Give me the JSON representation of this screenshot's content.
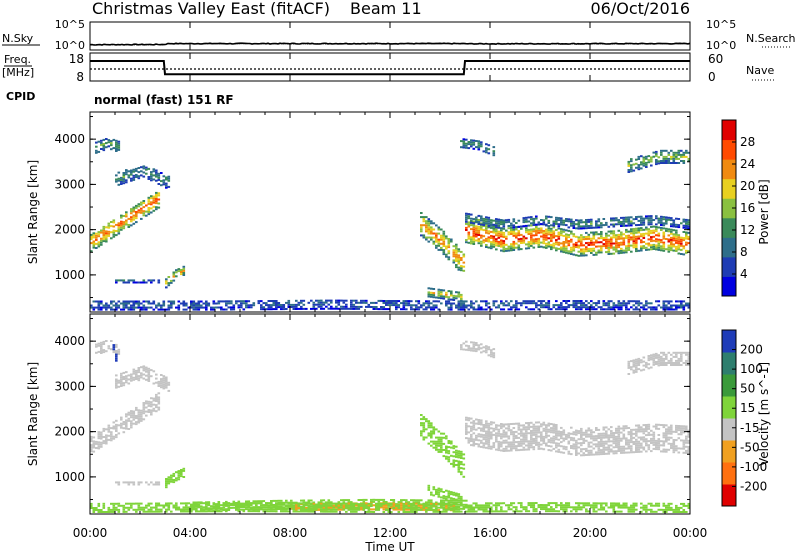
{
  "header": {
    "title": "Christmas Valley East (fitACF)",
    "beam": "Beam 11",
    "date": "06/Oct/2016"
  },
  "noise_panel": {
    "left_label": "N.Sky",
    "right_label": "N.Search",
    "left_ticks": [
      "10^5",
      "10^0"
    ],
    "right_ticks": [
      "10^5",
      "10^0"
    ]
  },
  "freq_panel": {
    "left_label_line1": "Freq.",
    "left_label_line2": "[MHz]",
    "left_ticks": [
      "18",
      "8"
    ],
    "right_ticks": [
      "60",
      "0"
    ],
    "right_label": "Nave"
  },
  "cpid": {
    "label": "CPID",
    "text": "normal (fast) 151 RF"
  },
  "x_axis": {
    "label": "Time UT",
    "ticks": [
      "00:00",
      "04:00",
      "08:00",
      "12:00",
      "16:00",
      "20:00",
      "00:00"
    ]
  },
  "power_panel": {
    "ylabel": "Slant Range [km]",
    "yticks": [
      "4000",
      "3000",
      "2000",
      "1000"
    ],
    "colorbar_label": "Power [dB]",
    "colorbar_ticks": [
      "28",
      "24",
      "20",
      "16",
      "12",
      "8",
      "4"
    ]
  },
  "velocity_panel": {
    "ylabel": "Slant Range [km]",
    "yticks": [
      "4000",
      "3000",
      "2000",
      "1000"
    ],
    "colorbar_label": "Velocity [m s^-1]",
    "colorbar_ticks": [
      "200",
      "100",
      "50",
      "15",
      "-15",
      "-50",
      "-100",
      "-200"
    ]
  },
  "chart_data": [
    {
      "type": "line",
      "name": "noise",
      "x_hours": [
        0,
        3,
        3.1,
        15,
        15.1,
        24
      ],
      "sky_log10": [
        0.3,
        0.35,
        0.55,
        0.55,
        0.5,
        0.55
      ],
      "search_log10": [
        0.3,
        0.3,
        0.5,
        0.5,
        0.45,
        0.5
      ],
      "ylim_log10": [
        0,
        5
      ]
    },
    {
      "type": "line",
      "name": "frequency",
      "x_hours": [
        0,
        2.95,
        3.0,
        14.95,
        15.0,
        24
      ],
      "freq_mhz": [
        15.5,
        15.5,
        10.0,
        10.0,
        15.5,
        15.5
      ],
      "nave": [
        25,
        25,
        25,
        25,
        25,
        25
      ],
      "ylim_freq": [
        8,
        18
      ],
      "ylim_nave": [
        0,
        60
      ]
    },
    {
      "type": "heatmap",
      "name": "power",
      "xlim_hours": [
        0,
        24
      ],
      "ylim_km": [
        180,
        4600
      ],
      "bands": [
        {
          "t0": 0.0,
          "t1": 2.8,
          "r_center": [
            1700,
            2200,
            2700
          ],
          "width_km": 400,
          "power_db": 26
        },
        {
          "t0": 0.2,
          "t1": 1.2,
          "r_center": [
            3800,
            3900,
            3800
          ],
          "width_km": 250,
          "power_db": 14
        },
        {
          "t0": 1.0,
          "t1": 3.2,
          "r_center": [
            3100,
            3300,
            3000
          ],
          "width_km": 300,
          "power_db": 12
        },
        {
          "t0": 1.0,
          "t1": 2.8,
          "r_center": [
            850,
            850,
            850
          ],
          "width_km": 80,
          "power_db": 10
        },
        {
          "t0": 3.0,
          "t1": 3.8,
          "r_center": [
            800,
            1000,
            1100
          ],
          "width_km": 200,
          "power_db": 22
        },
        {
          "t0": 13.2,
          "t1": 14.95,
          "r_center": [
            2100,
            1700,
            1200
          ],
          "width_km": 500,
          "power_db": 24
        },
        {
          "t0": 13.5,
          "t1": 14.8,
          "r_center": [
            600,
            550,
            500
          ],
          "width_km": 200,
          "power_db": 20
        },
        {
          "t0": 15.0,
          "t1": 24.0,
          "r_center": [
            1950,
            1750,
            1850,
            1650,
            1700,
            1800,
            1650
          ],
          "width_km": 500,
          "power_db": 28
        },
        {
          "t0": 15.0,
          "t1": 24.0,
          "r_center": [
            2250,
            2100,
            2200,
            2100,
            2150,
            2200,
            2100
          ],
          "width_km": 200,
          "power_db": 12
        },
        {
          "t0": 14.8,
          "t1": 16.2,
          "r_center": [
            3900,
            3850,
            3700
          ],
          "width_km": 200,
          "power_db": 12
        },
        {
          "t0": 21.5,
          "t1": 24.0,
          "r_center": [
            3400,
            3600,
            3600
          ],
          "width_km": 300,
          "power_db": 16
        },
        {
          "t0": 0.0,
          "t1": 24.0,
          "r_center": [
            320,
            320,
            340,
            320,
            330,
            320
          ],
          "width_km": 220,
          "power_db": 8
        }
      ]
    },
    {
      "type": "heatmap",
      "name": "velocity",
      "xlim_hours": [
        0,
        24
      ],
      "ylim_km": [
        180,
        4600
      ],
      "bands": [
        {
          "t0": 0.0,
          "t1": 2.8,
          "r_center": [
            1700,
            2200,
            2700
          ],
          "width_km": 400,
          "velocity": 0
        },
        {
          "t0": 0.2,
          "t1": 1.2,
          "r_center": [
            3800,
            3900,
            3800
          ],
          "width_km": 250,
          "velocity": 0
        },
        {
          "t0": 0.9,
          "t1": 1.1,
          "r_center": [
            3900,
            3600,
            3400
          ],
          "width_km": 200,
          "velocity": 180
        },
        {
          "t0": 1.0,
          "t1": 3.2,
          "r_center": [
            3100,
            3300,
            3000
          ],
          "width_km": 300,
          "velocity": 0
        },
        {
          "t0": 1.0,
          "t1": 2.8,
          "r_center": [
            850,
            850,
            850
          ],
          "width_km": 80,
          "velocity": 0
        },
        {
          "t0": 3.0,
          "t1": 3.8,
          "r_center": [
            850,
            1000,
            1100
          ],
          "width_km": 200,
          "velocity": 40
        },
        {
          "t0": 13.2,
          "t1": 14.95,
          "r_center": [
            2100,
            1700,
            1200
          ],
          "width_km": 500,
          "velocity": 30
        },
        {
          "t0": 13.5,
          "t1": 14.8,
          "r_center": [
            700,
            600,
            500
          ],
          "width_km": 200,
          "velocity": 40
        },
        {
          "t0": 15.0,
          "t1": 24.0,
          "r_center": [
            2000,
            1850,
            1900,
            1750,
            1800,
            1850,
            1800
          ],
          "width_km": 600,
          "velocity": 0
        },
        {
          "t0": 14.8,
          "t1": 16.2,
          "r_center": [
            3900,
            3850,
            3700
          ],
          "width_km": 200,
          "velocity": 0
        },
        {
          "t0": 21.5,
          "t1": 24.0,
          "r_center": [
            3400,
            3600,
            3600
          ],
          "width_km": 300,
          "velocity": 0
        },
        {
          "t0": 4.0,
          "t1": 15.0,
          "r_center": [
            340,
            380,
            400,
            380
          ],
          "width_km": 220,
          "velocity": 30
        },
        {
          "t0": 8.0,
          "t1": 14.5,
          "r_center": [
            320,
            340,
            320
          ],
          "width_km": 160,
          "velocity": -30
        },
        {
          "t0": 0.0,
          "t1": 24.0,
          "r_center": [
            300,
            320,
            300,
            320,
            300
          ],
          "width_km": 200,
          "velocity": 25
        }
      ]
    }
  ]
}
